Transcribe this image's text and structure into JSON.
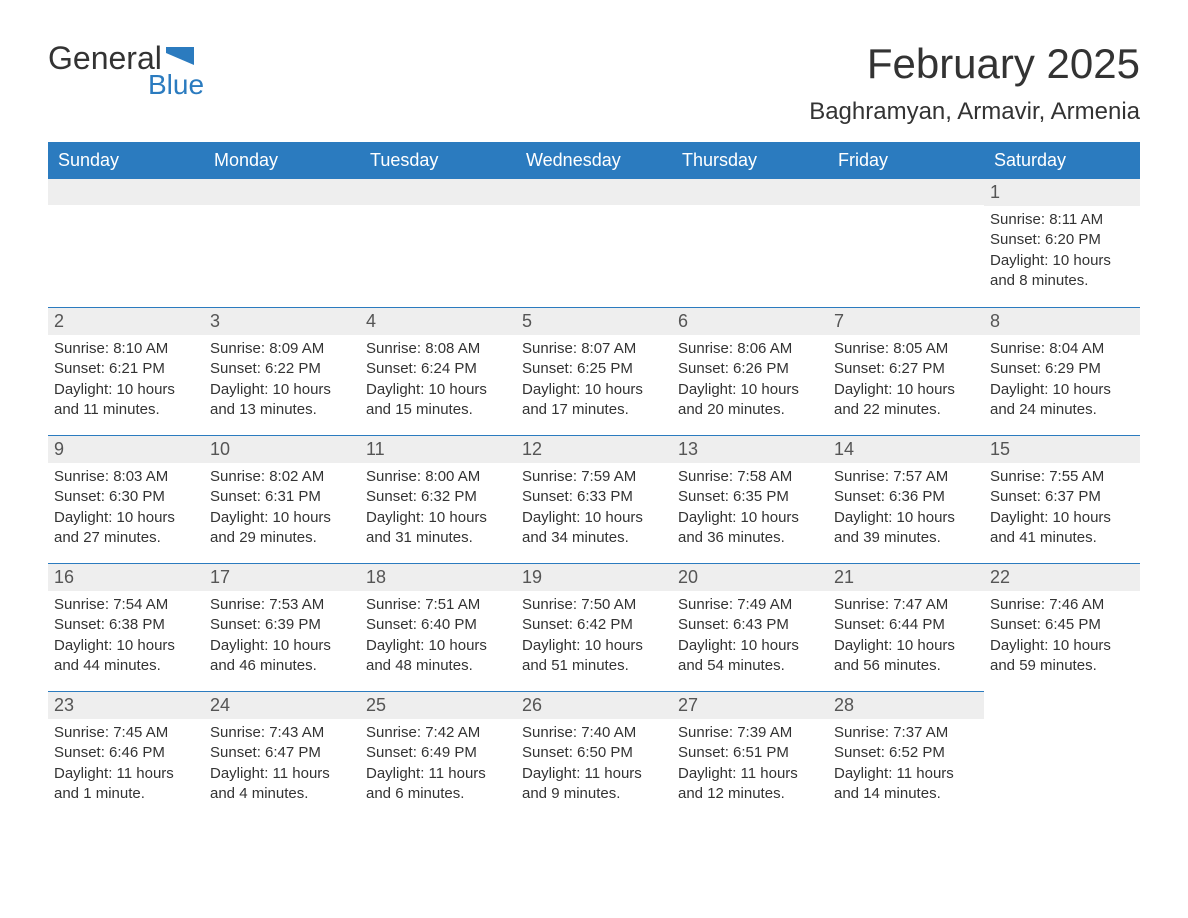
{
  "logo": {
    "text1": "General",
    "text2": "Blue"
  },
  "title": "February 2025",
  "location": "Baghramyan, Armavir, Armenia",
  "colors": {
    "header_bg": "#2b7bbf",
    "header_text": "#ffffff",
    "daynum_bg": "#eeeeee",
    "border": "#2b7bbf",
    "text": "#333333"
  },
  "daysOfWeek": [
    "Sunday",
    "Monday",
    "Tuesday",
    "Wednesday",
    "Thursday",
    "Friday",
    "Saturday"
  ],
  "weeks": [
    [
      null,
      null,
      null,
      null,
      null,
      null,
      {
        "n": "1",
        "sr": "Sunrise: 8:11 AM",
        "ss": "Sunset: 6:20 PM",
        "dl": "Daylight: 10 hours and 8 minutes."
      }
    ],
    [
      {
        "n": "2",
        "sr": "Sunrise: 8:10 AM",
        "ss": "Sunset: 6:21 PM",
        "dl": "Daylight: 10 hours and 11 minutes."
      },
      {
        "n": "3",
        "sr": "Sunrise: 8:09 AM",
        "ss": "Sunset: 6:22 PM",
        "dl": "Daylight: 10 hours and 13 minutes."
      },
      {
        "n": "4",
        "sr": "Sunrise: 8:08 AM",
        "ss": "Sunset: 6:24 PM",
        "dl": "Daylight: 10 hours and 15 minutes."
      },
      {
        "n": "5",
        "sr": "Sunrise: 8:07 AM",
        "ss": "Sunset: 6:25 PM",
        "dl": "Daylight: 10 hours and 17 minutes."
      },
      {
        "n": "6",
        "sr": "Sunrise: 8:06 AM",
        "ss": "Sunset: 6:26 PM",
        "dl": "Daylight: 10 hours and 20 minutes."
      },
      {
        "n": "7",
        "sr": "Sunrise: 8:05 AM",
        "ss": "Sunset: 6:27 PM",
        "dl": "Daylight: 10 hours and 22 minutes."
      },
      {
        "n": "8",
        "sr": "Sunrise: 8:04 AM",
        "ss": "Sunset: 6:29 PM",
        "dl": "Daylight: 10 hours and 24 minutes."
      }
    ],
    [
      {
        "n": "9",
        "sr": "Sunrise: 8:03 AM",
        "ss": "Sunset: 6:30 PM",
        "dl": "Daylight: 10 hours and 27 minutes."
      },
      {
        "n": "10",
        "sr": "Sunrise: 8:02 AM",
        "ss": "Sunset: 6:31 PM",
        "dl": "Daylight: 10 hours and 29 minutes."
      },
      {
        "n": "11",
        "sr": "Sunrise: 8:00 AM",
        "ss": "Sunset: 6:32 PM",
        "dl": "Daylight: 10 hours and 31 minutes."
      },
      {
        "n": "12",
        "sr": "Sunrise: 7:59 AM",
        "ss": "Sunset: 6:33 PM",
        "dl": "Daylight: 10 hours and 34 minutes."
      },
      {
        "n": "13",
        "sr": "Sunrise: 7:58 AM",
        "ss": "Sunset: 6:35 PM",
        "dl": "Daylight: 10 hours and 36 minutes."
      },
      {
        "n": "14",
        "sr": "Sunrise: 7:57 AM",
        "ss": "Sunset: 6:36 PM",
        "dl": "Daylight: 10 hours and 39 minutes."
      },
      {
        "n": "15",
        "sr": "Sunrise: 7:55 AM",
        "ss": "Sunset: 6:37 PM",
        "dl": "Daylight: 10 hours and 41 minutes."
      }
    ],
    [
      {
        "n": "16",
        "sr": "Sunrise: 7:54 AM",
        "ss": "Sunset: 6:38 PM",
        "dl": "Daylight: 10 hours and 44 minutes."
      },
      {
        "n": "17",
        "sr": "Sunrise: 7:53 AM",
        "ss": "Sunset: 6:39 PM",
        "dl": "Daylight: 10 hours and 46 minutes."
      },
      {
        "n": "18",
        "sr": "Sunrise: 7:51 AM",
        "ss": "Sunset: 6:40 PM",
        "dl": "Daylight: 10 hours and 48 minutes."
      },
      {
        "n": "19",
        "sr": "Sunrise: 7:50 AM",
        "ss": "Sunset: 6:42 PM",
        "dl": "Daylight: 10 hours and 51 minutes."
      },
      {
        "n": "20",
        "sr": "Sunrise: 7:49 AM",
        "ss": "Sunset: 6:43 PM",
        "dl": "Daylight: 10 hours and 54 minutes."
      },
      {
        "n": "21",
        "sr": "Sunrise: 7:47 AM",
        "ss": "Sunset: 6:44 PM",
        "dl": "Daylight: 10 hours and 56 minutes."
      },
      {
        "n": "22",
        "sr": "Sunrise: 7:46 AM",
        "ss": "Sunset: 6:45 PM",
        "dl": "Daylight: 10 hours and 59 minutes."
      }
    ],
    [
      {
        "n": "23",
        "sr": "Sunrise: 7:45 AM",
        "ss": "Sunset: 6:46 PM",
        "dl": "Daylight: 11 hours and 1 minute."
      },
      {
        "n": "24",
        "sr": "Sunrise: 7:43 AM",
        "ss": "Sunset: 6:47 PM",
        "dl": "Daylight: 11 hours and 4 minutes."
      },
      {
        "n": "25",
        "sr": "Sunrise: 7:42 AM",
        "ss": "Sunset: 6:49 PM",
        "dl": "Daylight: 11 hours and 6 minutes."
      },
      {
        "n": "26",
        "sr": "Sunrise: 7:40 AM",
        "ss": "Sunset: 6:50 PM",
        "dl": "Daylight: 11 hours and 9 minutes."
      },
      {
        "n": "27",
        "sr": "Sunrise: 7:39 AM",
        "ss": "Sunset: 6:51 PM",
        "dl": "Daylight: 11 hours and 12 minutes."
      },
      {
        "n": "28",
        "sr": "Sunrise: 7:37 AM",
        "ss": "Sunset: 6:52 PM",
        "dl": "Daylight: 11 hours and 14 minutes."
      },
      null
    ]
  ]
}
